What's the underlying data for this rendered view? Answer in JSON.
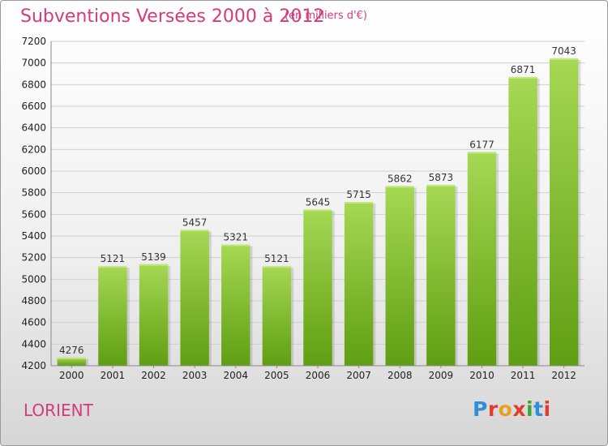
{
  "header": {
    "title": "Subventions Versées 2000 à 2012",
    "subtitle": "(en milliers d'€)"
  },
  "footer": {
    "city": "LORIENT",
    "logo_text": "Proxiti",
    "logo_colors": [
      "#2f8fd8",
      "#e23c2f",
      "#e8a020",
      "#e23c2f",
      "#3fa535",
      "#2f8fd8",
      "#e23c2f"
    ]
  },
  "chart_data": {
    "type": "bar",
    "title": "Subventions Versées 2000 à 2012",
    "subtitle": "(en milliers d'€)",
    "xlabel": "",
    "ylabel": "",
    "categories": [
      "2000",
      "2001",
      "2002",
      "2003",
      "2004",
      "2005",
      "2006",
      "2007",
      "2008",
      "2009",
      "2010",
      "2011",
      "2012"
    ],
    "values": [
      4276,
      5121,
      5139,
      5457,
      5321,
      5121,
      5645,
      5715,
      5862,
      5873,
      6177,
      6871,
      7043
    ],
    "ylim": [
      4200,
      7200
    ],
    "yticks": [
      4200,
      4400,
      4600,
      4800,
      5000,
      5200,
      5400,
      5600,
      5800,
      6000,
      6200,
      6400,
      6600,
      6800,
      7000,
      7200
    ],
    "grid": true,
    "colors": {
      "bar_light": "#a6d854",
      "bar_dark": "#5f9e12",
      "grid": "#cfcfcf",
      "axis": "#888888"
    }
  }
}
